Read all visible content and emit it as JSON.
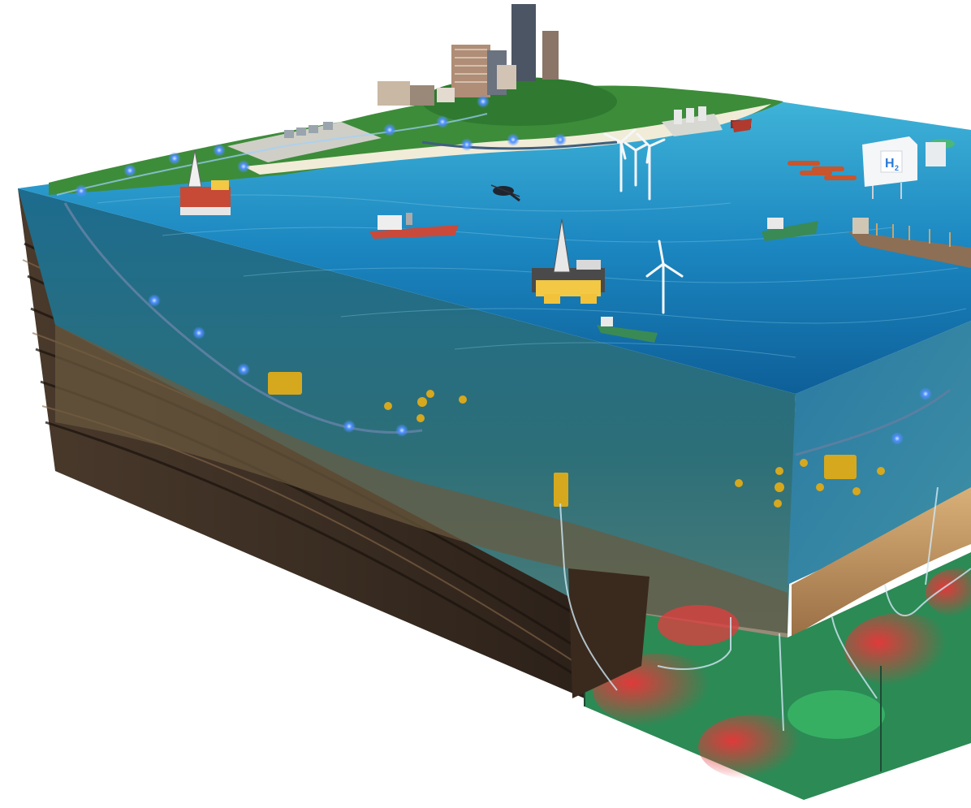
{
  "scene": {
    "hydrogen_label": "H",
    "hydrogen_subscript": "2",
    "elements": {
      "city": "city-skyline",
      "coast": "coastline-vegetation",
      "processing": "onshore-processing-plant",
      "port": "port-terminal",
      "wind": "offshore-wind-turbines",
      "h2": "hydrogen-platform",
      "fpso": "fpso-vessel",
      "rigs": "drilling-rigs",
      "vessels": "supply-vessels",
      "helicopter": "helicopter",
      "subsea": "subsea-infrastructure",
      "pipelines": "pipelines",
      "reservoir": "reservoir-model"
    }
  }
}
